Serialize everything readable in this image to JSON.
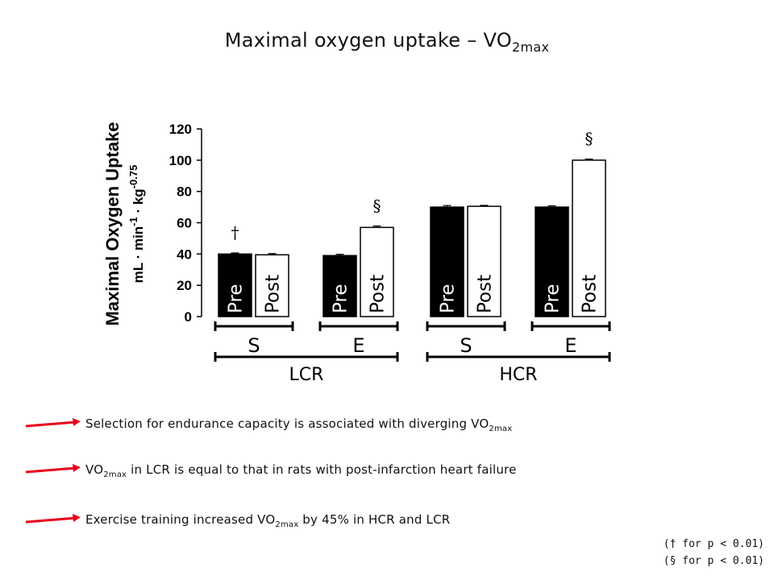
{
  "title": {
    "prefix": "Maximal oxygen uptake – VO",
    "sub": "2max"
  },
  "chart_data": {
    "type": "bar",
    "ylabel_line1": "Maximal Oxygen Uptake",
    "ylabel_line2_prefix": "mL · min",
    "ylabel_line2_exp1": "-1",
    "ylabel_line2_mid": " · kg",
    "ylabel_line2_exp2": "-0.75",
    "ylim": [
      0,
      120
    ],
    "yticks": [
      "0",
      "20",
      "40",
      "60",
      "80",
      "100",
      "120"
    ],
    "categories": [
      "S",
      "E",
      "S",
      "E"
    ],
    "groups": [
      "LCR",
      "HCR"
    ],
    "series": [
      {
        "name": "Pre",
        "color": "#000000",
        "values": [
          40,
          39,
          70,
          70
        ]
      },
      {
        "name": "Post",
        "color": "#ffffff",
        "values": [
          39.5,
          57,
          70.5,
          100
        ]
      }
    ],
    "errors": {
      "Pre": [
        0.7,
        0.8,
        1.0,
        0.8
      ],
      "Post": [
        0.8,
        0.9,
        0.6,
        0.7
      ]
    },
    "annotations": [
      {
        "symbol": "†",
        "series": "Pre",
        "index": 0
      },
      {
        "symbol": "§",
        "series": "Post",
        "index": 1
      },
      {
        "symbol": "§",
        "series": "Post",
        "index": 3
      }
    ]
  },
  "bullets": [
    {
      "pre": "Selection for endurance capacity is associated with diverging VO",
      "sub": "2max",
      "post": ""
    },
    {
      "pre": "VO",
      "sub": "2max",
      "post": " in LCR is equal to that in rats with post-infarction heart failure"
    },
    {
      "pre": "Exercise training increased VO",
      "sub": "2max",
      "post": " by 45% in HCR and LCR"
    }
  ],
  "notes": [
    "(† for p < 0.01)",
    "(§ for p < 0.01)"
  ],
  "arrow_color": "#e8001c"
}
